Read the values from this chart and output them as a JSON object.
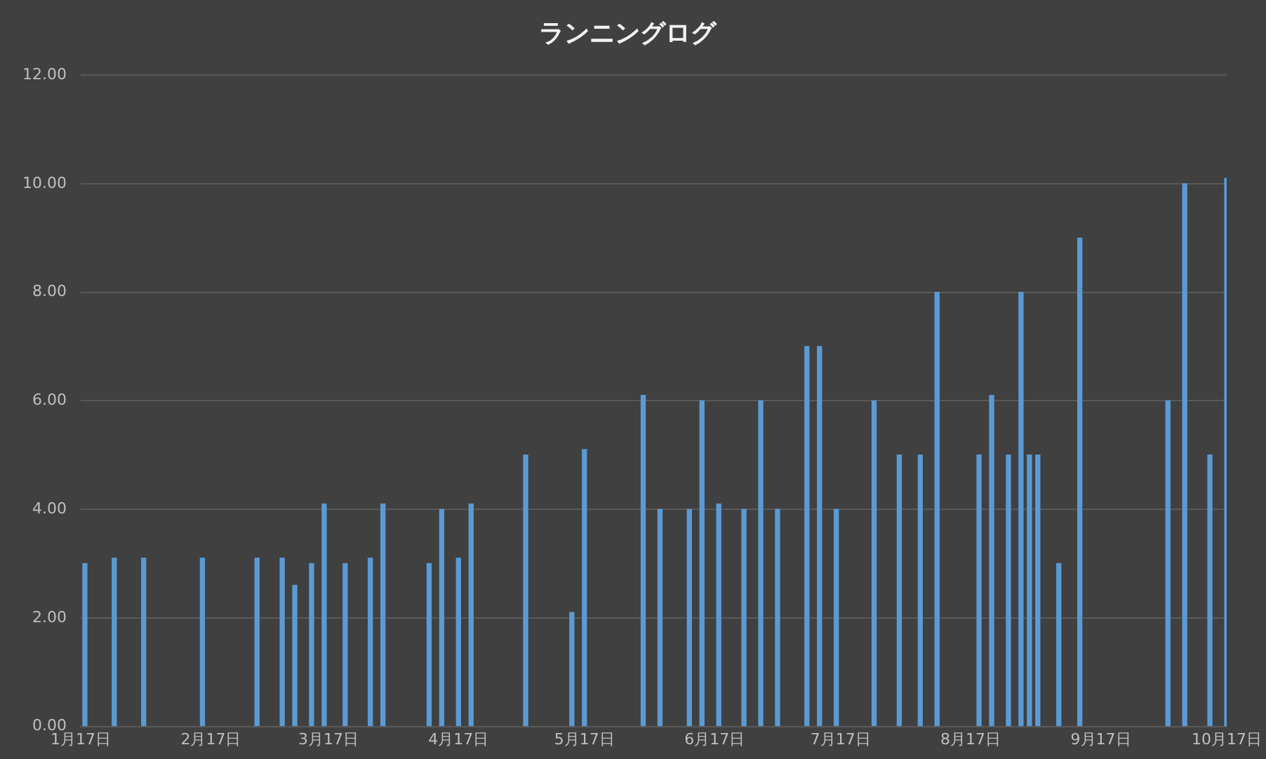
{
  "chart_data": {
    "type": "bar",
    "title": "ランニングログ",
    "x": [
      "--01-18",
      "--01-25",
      "--02-01",
      "--02-15",
      "--02-28",
      "--03-06",
      "--03-09",
      "--03-13",
      "--03-16",
      "--03-21",
      "--03-27",
      "--03-30",
      "--04-10",
      "--04-13",
      "--04-17",
      "--04-20",
      "--05-03",
      "--05-14",
      "--05-17",
      "--05-31",
      "--06-04",
      "--06-11",
      "--06-14",
      "--06-18",
      "--06-24",
      "--06-28",
      "--07-02",
      "--07-09",
      "--07-12",
      "--07-16",
      "--07-25",
      "--07-31",
      "--08-05",
      "--08-09",
      "--08-19",
      "--08-22",
      "--08-26",
      "--08-29",
      "--08-31",
      "--09-02",
      "--09-07",
      "--09-12",
      "--10-03",
      "--10-07",
      "--10-13",
      "--10-17"
    ],
    "values": [
      3.0,
      3.1,
      3.1,
      3.1,
      3.1,
      3.1,
      2.6,
      3.0,
      4.1,
      3.0,
      3.1,
      4.1,
      3.0,
      4.0,
      3.1,
      4.1,
      5.0,
      2.1,
      5.1,
      6.1,
      4.0,
      4.0,
      6.0,
      4.1,
      4.0,
      6.0,
      4.0,
      7.0,
      7.0,
      4.0,
      6.0,
      5.0,
      5.0,
      8.0,
      5.0,
      6.1,
      5.0,
      8.0,
      5.0,
      5.0,
      3.0,
      9.0,
      6.0,
      10.0,
      5.0,
      10.1
    ],
    "color": "#5b9bd5",
    "xlim": [
      "--01-17",
      "--10-17"
    ],
    "xticks": [
      {
        "value": "--01-17",
        "label": "1月17日"
      },
      {
        "value": "--02-17",
        "label": "2月17日"
      },
      {
        "value": "--03-17",
        "label": "3月17日"
      },
      {
        "value": "--04-17",
        "label": "4月17日"
      },
      {
        "value": "--05-17",
        "label": "5月17日"
      },
      {
        "value": "--06-17",
        "label": "6月17日"
      },
      {
        "value": "--07-17",
        "label": "7月17日"
      },
      {
        "value": "--08-17",
        "label": "8月17日"
      },
      {
        "value": "--09-17",
        "label": "9月17日"
      },
      {
        "value": "--10-17",
        "label": "10月17日"
      }
    ],
    "ylim": [
      0,
      12
    ],
    "yticks": [
      {
        "value": 0,
        "label": "0.00"
      },
      {
        "value": 2,
        "label": "2.00"
      },
      {
        "value": 4,
        "label": "4.00"
      },
      {
        "value": 6,
        "label": "6.00"
      },
      {
        "value": 8,
        "label": "8.00"
      },
      {
        "value": 10,
        "label": "10.00"
      },
      {
        "value": 12,
        "label": "12.00"
      }
    ],
    "grid": "y"
  }
}
